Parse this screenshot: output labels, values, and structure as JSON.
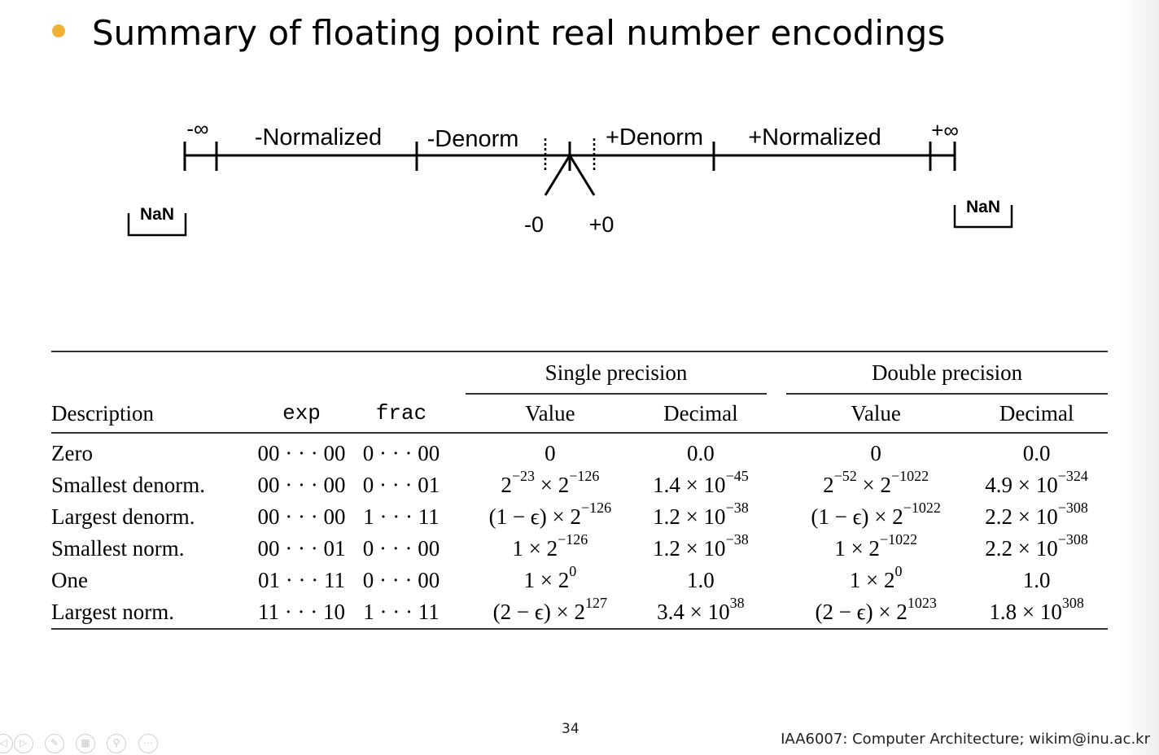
{
  "slide": {
    "title": "Summary of floating point real number encodings",
    "page_number": "34",
    "footer": "IAA6007: Computer Architecture; wikim@inu.ac.kr",
    "bullet_color": "#f0b133"
  },
  "number_line": {
    "neg_inf": "-∞",
    "neg_normalized": "-Normalized",
    "neg_denorm": "-Denorm",
    "pos_denorm": "+Denorm",
    "pos_normalized": "+Normalized",
    "pos_inf": "+∞",
    "nan_left": "NaN",
    "nan_right": "NaN",
    "neg_zero": "-0",
    "pos_zero": "+0"
  },
  "table": {
    "group_headers": {
      "single": "Single precision",
      "double": "Double precision"
    },
    "columns": {
      "description": "Description",
      "exp": "exp",
      "frac": "frac",
      "single_value": "Value",
      "single_decimal": "Decimal",
      "double_value": "Value",
      "double_decimal": "Decimal"
    },
    "rows": [
      {
        "description": "Zero",
        "exp": "00 · · · 00",
        "frac": "0 · · · 00",
        "s_value": "0",
        "s_decimal": "0.0",
        "d_value": "0",
        "d_decimal": "0.0"
      },
      {
        "description": "Smallest denorm.",
        "exp": "00 · · · 00",
        "frac": "0 · · · 01",
        "s_value": "2−23 × 2−126",
        "s_decimal": "1.4 × 10−45",
        "d_value": "2−52 × 2−1022",
        "d_decimal": "4.9 × 10−324"
      },
      {
        "description": "Largest denorm.",
        "exp": "00 · · · 00",
        "frac": "1 · · · 11",
        "s_value": "(1 − ϵ) × 2−126",
        "s_decimal": "1.2 × 10−38",
        "d_value": "(1 − ϵ) × 2−1022",
        "d_decimal": "2.2 × 10−308"
      },
      {
        "description": "Smallest norm.",
        "exp": "00 · · · 01",
        "frac": "0 · · · 00",
        "s_value": "1 × 2−126",
        "s_decimal": "1.2 × 10−38",
        "d_value": "1 × 2−1022",
        "d_decimal": "2.2 × 10−308"
      },
      {
        "description": "One",
        "exp": "01 · · · 11",
        "frac": "0 · · · 00",
        "s_value": "1 × 20",
        "s_decimal": "1.0",
        "d_value": "1 × 20",
        "d_decimal": "1.0"
      },
      {
        "description": "Largest norm.",
        "exp": "11 · · · 10",
        "frac": "1 · · · 11",
        "s_value": "(2 − ϵ) × 2127",
        "s_decimal": "3.4 × 1038",
        "d_value": "(2 − ϵ) × 21023",
        "d_decimal": "1.8 × 10308"
      }
    ]
  },
  "controls": [
    {
      "icon": "back-icon"
    },
    {
      "icon": "play-icon"
    },
    {
      "icon": "pen-icon"
    },
    {
      "icon": "slides-icon"
    },
    {
      "icon": "zoom-icon"
    },
    {
      "icon": "more-icon"
    }
  ]
}
